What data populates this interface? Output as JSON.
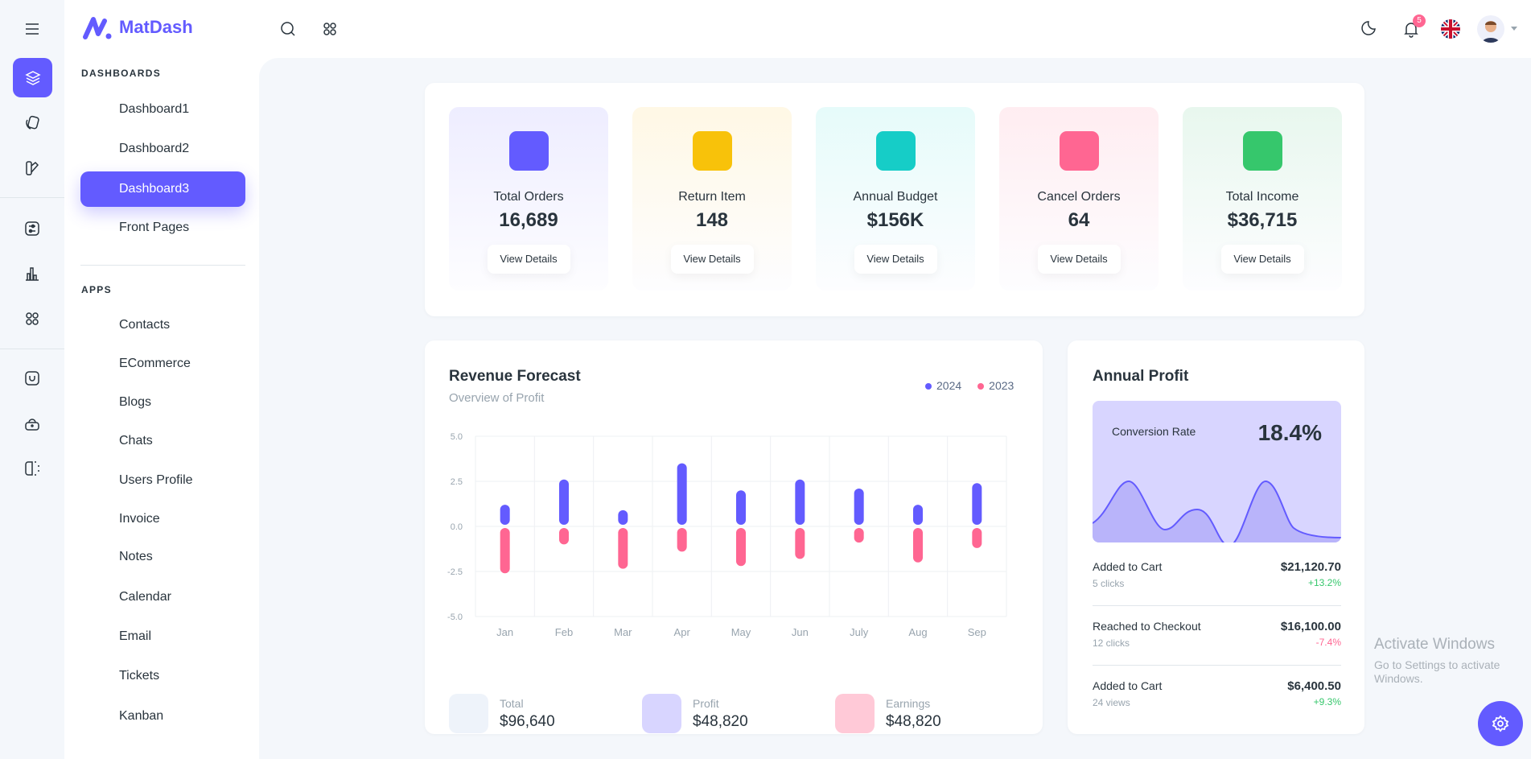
{
  "app": {
    "name": "MatDash"
  },
  "rail": {
    "icons": [
      "layers-icon",
      "cards-icon",
      "palette-icon",
      "sliders-icon",
      "bar-chart-icon",
      "apps-icon",
      "face-icon",
      "lock-icon",
      "split-panel-icon"
    ]
  },
  "sidebar": {
    "sections": [
      {
        "title": "DASHBOARDS",
        "items": [
          {
            "label": "Dashboard1",
            "icon": "atom-icon"
          },
          {
            "label": "Dashboard2",
            "icon": "chart-icon"
          },
          {
            "label": "Dashboard3",
            "icon": "screen-icon",
            "active": true
          },
          {
            "label": "Front Pages",
            "icon": "home-icon",
            "chevron": true
          }
        ]
      },
      {
        "title": "APPS",
        "items": [
          {
            "label": "Contacts",
            "icon": "phone-icon"
          },
          {
            "label": "ECommerce",
            "icon": "basket-icon",
            "chevron": true
          },
          {
            "label": "Blogs",
            "icon": "blocks-icon",
            "chevron": true
          },
          {
            "label": "Chats",
            "icon": "chat-icon"
          },
          {
            "label": "Users Profile",
            "icon": "user-shield-icon",
            "chevron": true
          },
          {
            "label": "Invoice",
            "icon": "invoice-icon",
            "chevron": true
          },
          {
            "label": "Notes",
            "icon": "note-icon"
          },
          {
            "label": "Calendar",
            "icon": "calendar-icon"
          },
          {
            "label": "Email",
            "icon": "mail-icon"
          },
          {
            "label": "Tickets",
            "icon": "ticket-icon"
          },
          {
            "label": "Kanban",
            "icon": "kanban-icon"
          }
        ]
      }
    ]
  },
  "header": {
    "notification_count": "5",
    "language": "en-GB"
  },
  "stats": [
    {
      "label": "Total Orders",
      "value": "16,689",
      "button": "View Details",
      "color": "#635bff",
      "bg": "#eeedff",
      "icon": "dollar-icon"
    },
    {
      "label": "Return Item",
      "value": "148",
      "button": "View Details",
      "color": "#f8c20a",
      "bg": "#fff8e5",
      "icon": "return-icon"
    },
    {
      "label": "Annual Budget",
      "value": "$156K",
      "button": "View Details",
      "color": "#16cdc7",
      "bg": "#e6fbfa",
      "icon": "bag-icon"
    },
    {
      "label": "Cancel Orders",
      "value": "64",
      "button": "View Details",
      "color": "#ff6692",
      "bg": "#ffedf1",
      "icon": "cancel-icon"
    },
    {
      "label": "Total Income",
      "value": "$36,715",
      "button": "View Details",
      "color": "#36c76c",
      "bg": "#e8f7ee",
      "icon": "trees-icon"
    }
  ],
  "revenue": {
    "title": "Revenue Forecast",
    "subtitle": "Overview of Profit",
    "summary": [
      {
        "label": "Total",
        "value": "$96,640",
        "icon": "pie-icon"
      },
      {
        "label": "Profit",
        "value": "$48,820",
        "icon": "dollar-icon"
      },
      {
        "label": "Earnings",
        "value": "$48,820",
        "icon": "database-icon"
      }
    ]
  },
  "chart_data": {
    "type": "bar",
    "categories": [
      "Jan",
      "Feb",
      "Mar",
      "Apr",
      "May",
      "Jun",
      "July",
      "Aug",
      "Sep"
    ],
    "series": [
      {
        "name": "2024",
        "color": "#635bff",
        "values": [
          1.2,
          2.6,
          0.9,
          3.5,
          2.0,
          2.6,
          2.1,
          1.2,
          2.4
        ]
      },
      {
        "name": "2023",
        "color": "#ff6692",
        "values": [
          -2.6,
          -1.0,
          -2.35,
          -1.4,
          -2.2,
          -1.8,
          -0.9,
          -2.0,
          -1.2
        ]
      }
    ],
    "ylim": [
      -5,
      5
    ],
    "yticks": [
      "5.0",
      "2.5",
      "0.0",
      "-2.5",
      "-5.0"
    ],
    "grid": true,
    "legend": "top-right",
    "stacked": true
  },
  "annual": {
    "title": "Annual Profit",
    "conversion_label": "Conversion Rate",
    "conversion_value": "18.4%",
    "rows": [
      {
        "label": "Added to Cart",
        "sub": "5 clicks",
        "amount": "$21,120.70",
        "change": "+13.2%",
        "positive": true
      },
      {
        "label": "Reached to Checkout",
        "sub": "12 clicks",
        "amount": "$16,100.00",
        "change": "-7.4%",
        "positive": false
      },
      {
        "label": "Added to Cart",
        "sub": "24 views",
        "amount": "$6,400.50",
        "change": "+9.3%",
        "positive": true
      }
    ]
  },
  "watermark": {
    "line1": "Activate Windows",
    "line2": "Go to Settings to activate Windows."
  }
}
